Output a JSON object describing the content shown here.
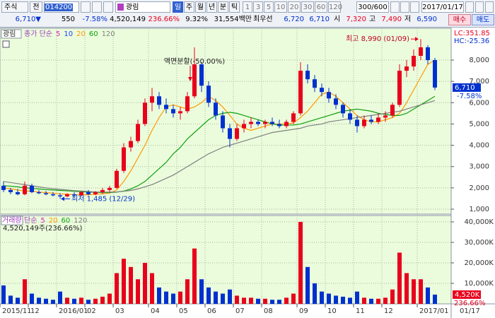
{
  "toolbar": {
    "market": "주식",
    "tab": "전",
    "code": "014200",
    "name": "광림",
    "periods": [
      "일",
      "주",
      "월",
      "년",
      "분",
      "틱"
    ],
    "minutes": [
      "1",
      "3",
      "5",
      "10",
      "20",
      "30",
      "60",
      "120"
    ],
    "count": "300/600",
    "date": "2017/01/17"
  },
  "quote": {
    "price": "6,710▼",
    "change": "550",
    "rate": "-7.58%",
    "volume": "4,520,149",
    "vol_ratio": "236.66%",
    "turnover": "9.32%",
    "amount": "31,554백만",
    "best_label": "최우선",
    "ask": "6,720",
    "bid": "6,710",
    "open_label": "시",
    "open": "7,320",
    "high_label": "고",
    "high": "7,490",
    "low_label": "저",
    "low": "6,590",
    "buy": "매수",
    "sell": "매도"
  },
  "chart_data": [
    {
      "type": "candlestick",
      "title": "광림",
      "indicator_label": "종가 단순",
      "up_color": "#e8001c",
      "down_color": "#0030d0",
      "legend_extra": [
        {
          "name": "5",
          "color": "#e020c0"
        },
        {
          "name": "10",
          "color": "#2040ff"
        }
      ],
      "ohlc": [
        [
          2100,
          2300,
          1800,
          1900
        ],
        [
          1900,
          2000,
          1700,
          1800
        ],
        [
          1800,
          1950,
          1650,
          1700
        ],
        [
          1700,
          2300,
          1650,
          2100
        ],
        [
          2100,
          2200,
          1750,
          1800
        ],
        [
          1800,
          1900,
          1700,
          1750
        ],
        [
          1750,
          1850,
          1650,
          1700
        ],
        [
          1700,
          1800,
          1600,
          1650
        ],
        [
          1650,
          1750,
          1485,
          1600
        ],
        [
          1600,
          1750,
          1550,
          1700
        ],
        [
          1700,
          1800,
          1600,
          1650
        ],
        [
          1650,
          1850,
          1600,
          1800
        ],
        [
          1800,
          1900,
          1650,
          1700
        ],
        [
          1700,
          1850,
          1650,
          1800
        ],
        [
          1800,
          2000,
          1700,
          1900
        ],
        [
          1900,
          2100,
          1800,
          2000
        ],
        [
          2000,
          2900,
          1950,
          2800
        ],
        [
          2800,
          4100,
          2700,
          3900
        ],
        [
          3900,
          4400,
          3700,
          4200
        ],
        [
          4200,
          5200,
          4100,
          5000
        ],
        [
          5000,
          6200,
          4900,
          6000
        ],
        [
          6000,
          6700,
          5600,
          6300
        ],
        [
          6300,
          6500,
          5700,
          5900
        ],
        [
          5900,
          6200,
          5500,
          5700
        ],
        [
          5700,
          5900,
          5300,
          5500
        ],
        [
          5500,
          5800,
          5200,
          5600
        ],
        [
          5600,
          6500,
          5500,
          6300
        ],
        [
          6300,
          8600,
          6200,
          7800
        ],
        [
          7800,
          7900,
          6500,
          6800
        ],
        [
          6800,
          7000,
          5800,
          6000
        ],
        [
          6000,
          6200,
          5200,
          5400
        ],
        [
          5400,
          5600,
          4600,
          4800
        ],
        [
          4800,
          5000,
          3900,
          4300
        ],
        [
          4300,
          5000,
          4200,
          4800
        ],
        [
          4800,
          5200,
          4600,
          5000
        ],
        [
          5000,
          5300,
          4800,
          5100
        ],
        [
          5100,
          5200,
          4900,
          5000
        ],
        [
          5000,
          5200,
          4800,
          5100
        ],
        [
          5100,
          5300,
          4900,
          5000
        ],
        [
          5000,
          5200,
          4800,
          4900
        ],
        [
          4900,
          5200,
          4800,
          5100
        ],
        [
          5100,
          5600,
          5000,
          5500
        ],
        [
          5500,
          7900,
          5400,
          7500
        ],
        [
          7500,
          7800,
          6900,
          7100
        ],
        [
          7100,
          7300,
          6500,
          6700
        ],
        [
          6700,
          6900,
          6300,
          6500
        ],
        [
          6500,
          6700,
          6000,
          6200
        ],
        [
          6200,
          6400,
          5700,
          5900
        ],
        [
          5900,
          6000,
          5300,
          5500
        ],
        [
          5500,
          5700,
          5000,
          5200
        ],
        [
          5200,
          5400,
          4600,
          4900
        ],
        [
          4900,
          5400,
          4800,
          5200
        ],
        [
          5200,
          5400,
          5000,
          5100
        ],
        [
          5100,
          5500,
          5000,
          5300
        ],
        [
          5300,
          5600,
          5100,
          5400
        ],
        [
          5400,
          6000,
          5300,
          5900
        ],
        [
          5900,
          7800,
          5800,
          7500
        ],
        [
          7500,
          8000,
          7200,
          7700
        ],
        [
          7700,
          8500,
          7500,
          8200
        ],
        [
          8200,
          8990,
          8000,
          8600
        ],
        [
          8600,
          8700,
          7800,
          8000
        ],
        [
          8000,
          8100,
          6590,
          6710
        ]
      ],
      "series": [
        {
          "name": "20",
          "color": "#ff9900",
          "values": [
            2000,
            1950,
            1900,
            1850,
            1850,
            1800,
            1780,
            1750,
            1720,
            1700,
            1680,
            1670,
            1680,
            1700,
            1720,
            1750,
            1900,
            2300,
            2800,
            3400,
            4000,
            4700,
            5300,
            5800,
            5900,
            5800,
            5700,
            5800,
            6000,
            6300,
            6100,
            5800,
            5400,
            5000,
            4800,
            4700,
            4800,
            4900,
            5000,
            5000,
            5000,
            5050,
            5300,
            5600,
            6000,
            6400,
            6500,
            6300,
            6000,
            5700,
            5400,
            5200,
            5100,
            5100,
            5200,
            5300,
            5500,
            6000,
            6600,
            7200,
            7800,
            8000
          ]
        },
        {
          "name": "60",
          "color": "#10a010",
          "values": [
            2100,
            2080,
            2050,
            2000,
            1980,
            1950,
            1920,
            1900,
            1880,
            1860,
            1840,
            1820,
            1800,
            1790,
            1780,
            1780,
            1800,
            1850,
            1950,
            2100,
            2300,
            2600,
            2900,
            3200,
            3600,
            3900,
            4300,
            4600,
            4900,
            5200,
            5400,
            5500,
            5550,
            5500,
            5400,
            5300,
            5200,
            5100,
            5000,
            4950,
            4950,
            4950,
            5000,
            5100,
            5200,
            5300,
            5400,
            5500,
            5600,
            5650,
            5700,
            5650,
            5600,
            5500,
            5450,
            5400,
            5400,
            5500,
            5700,
            5900,
            6100,
            6300
          ]
        },
        {
          "name": "120",
          "color": "#808080",
          "values": [
            2300,
            2250,
            2200,
            2150,
            2100,
            2050,
            2000,
            1960,
            1930,
            1900,
            1870,
            1850,
            1830,
            1810,
            1800,
            1800,
            1810,
            1840,
            1880,
            1950,
            2050,
            2150,
            2300,
            2450,
            2600,
            2800,
            3000,
            3200,
            3400,
            3600,
            3750,
            3900,
            4000,
            4100,
            4200,
            4300,
            4400,
            4500,
            4600,
            4650,
            4700,
            4750,
            4800,
            4900,
            4950,
            5000,
            5100,
            5150,
            5200,
            5250,
            5300,
            5350,
            5400,
            5450,
            5500,
            5550,
            5600,
            5700,
            5800,
            5900,
            6000,
            6100
          ]
        }
      ],
      "ylim": [
        768,
        9494
      ],
      "yticks": [
        {
          "value": 1000,
          "label": "1,000"
        },
        {
          "value": 2000,
          "label": "2,000"
        },
        {
          "value": 3000,
          "label": "3,000"
        },
        {
          "value": 4000,
          "label": "4,000"
        },
        {
          "value": 5000,
          "label": "5,000"
        },
        {
          "value": 6000,
          "label": "6,000"
        },
        {
          "value": 7000,
          "label": "7,000"
        },
        {
          "value": 8000,
          "label": "8,000"
        }
      ],
      "grid": true,
      "lc_label": "LC:351.85",
      "hc_label": "HC:-25.36",
      "last": {
        "value": 6710,
        "label": "6,710"
      },
      "last_change": "-7.58%",
      "annotations": [
        {
          "text": "최고 8,990 (01/09)",
          "kind": "high",
          "index": 59,
          "value": 8990
        },
        {
          "text": "최저 1,485 (12/29)",
          "kind": "low",
          "index": 8,
          "value": 1485
        },
        {
          "text": "액면분할(-50.00%)",
          "kind": "event",
          "index": 27
        }
      ]
    },
    {
      "type": "bar",
      "title": "거래량",
      "indicator_label": "단순",
      "legend": [
        {
          "name": "5",
          "color": "#e020c0"
        },
        {
          "name": "20",
          "color": "#ff9900"
        },
        {
          "name": "60",
          "color": "#10a010"
        },
        {
          "name": "120",
          "color": "#808080"
        }
      ],
      "info": "4,520,149주(236.66%)",
      "categories": [
        "2015/11",
        null,
        null,
        null,
        "12",
        null,
        null,
        null,
        "2016/01",
        null,
        null,
        null,
        "02",
        null,
        null,
        null,
        "03",
        null,
        null,
        null,
        null,
        "04",
        null,
        null,
        null,
        "05",
        null,
        null,
        null,
        "06",
        null,
        null,
        null,
        "07",
        null,
        null,
        null,
        "08",
        null,
        null,
        null,
        null,
        "09",
        null,
        null,
        null,
        "10",
        null,
        null,
        null,
        "11",
        null,
        null,
        null,
        "12",
        null,
        null,
        null,
        null,
        "2017/01",
        null,
        null
      ],
      "values": [
        9000,
        4000,
        3000,
        12000,
        5000,
        3000,
        2500,
        2000,
        6000,
        3000,
        2500,
        3000,
        2000,
        2500,
        3500,
        5000,
        15000,
        22000,
        18000,
        12000,
        20000,
        15000,
        8000,
        6000,
        5000,
        6000,
        12000,
        27000,
        12000,
        8000,
        6000,
        5000,
        7000,
        4000,
        3000,
        3000,
        2500,
        2500,
        2000,
        2000,
        3000,
        5000,
        40000,
        18000,
        10000,
        6000,
        5000,
        4000,
        3500,
        3000,
        6000,
        3000,
        2500,
        2500,
        3000,
        7000,
        25000,
        15000,
        12000,
        12000,
        8000,
        4520
      ],
      "ylim": [
        0,
        42400
      ],
      "yticks": [
        {
          "value": 10000,
          "label": "10,000K"
        },
        {
          "value": 20000,
          "label": "20,000K"
        },
        {
          "value": 30000,
          "label": "30,000K"
        },
        {
          "value": 40000,
          "label": "40,000K"
        }
      ],
      "grid": true,
      "last": {
        "value": 4520,
        "label": "4,520K"
      },
      "last_change": "236.66%",
      "x_end_label": "01/17"
    }
  ]
}
